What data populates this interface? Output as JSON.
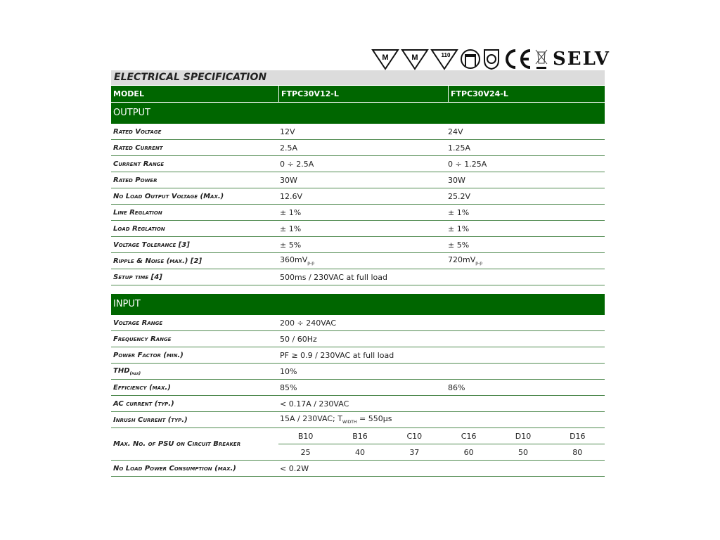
{
  "certifications": {
    "icons": [
      "m-triangle-icon",
      "m-triangle-icon",
      "110-triangle-icon",
      "class-ii-enclosure-icon",
      "safety-shield-icon",
      "ce-mark-icon",
      "weee-bin-icon"
    ],
    "ce": "CE",
    "tri_m": "M",
    "tri_110": "110",
    "selv": "SELV"
  },
  "title": "ELECTRICAL SPECIFICATION",
  "model": {
    "label": "MODEL",
    "a": "FTPC30V12-L",
    "b": "FTPC30V24-L"
  },
  "output": {
    "heading": "OUTPUT",
    "rows": [
      {
        "label": "Rated Voltage",
        "a": "12V",
        "b": "24V"
      },
      {
        "label": "Rated Current",
        "a": "2.5A",
        "b": "1.25A"
      },
      {
        "label": "Current Range",
        "a": "0 ÷ 2.5A",
        "b": "0 ÷ 1.25A"
      },
      {
        "label": "Rated Power",
        "a": "30W",
        "b": "30W"
      },
      {
        "label": "No Load Output Voltage (Max.)",
        "a": "12.6V",
        "b": "25.2V"
      },
      {
        "label": "Line Reglation",
        "a": "± 1%",
        "b": "± 1%"
      },
      {
        "label": "Load Reglation",
        "a": "± 1%",
        "b": "± 1%"
      },
      {
        "label": "Voltage Tolerance [3]",
        "a": "± 5%",
        "b": "± 5%"
      },
      {
        "label": "Ripple & Noise (max.) [2]",
        "a": "360mV",
        "a_sub": "p-p",
        "b": "720mV",
        "b_sub": "p-p"
      },
      {
        "label": "Setup time [4]",
        "a": "500ms / 230VAC at full load",
        "b": ""
      }
    ]
  },
  "input": {
    "heading": "INPUT",
    "rows": [
      {
        "label": "Voltage Range",
        "a": "200 ÷ 240VAC",
        "b": ""
      },
      {
        "label": "Frequency Range",
        "a": "50 / 60Hz",
        "b": ""
      },
      {
        "label": "Power Factor (min.)",
        "a": "PF ≥ 0.9 / 230VAC at full load",
        "b": ""
      },
      {
        "label": "THD",
        "label_sub": "(max)",
        "a": "10%",
        "b": ""
      },
      {
        "label": "Efficiency (max.)",
        "a": "85%",
        "b": "86%"
      },
      {
        "label": "AC current (typ.)",
        "a": "< 0.17A / 230VAC",
        "b": ""
      },
      {
        "label": "Inrush Current (typ.)",
        "a": "15A / 230VAC; T",
        "a_sub": "WIDTH",
        "a_tail": " = 550µs",
        "b": ""
      }
    ],
    "breaker": {
      "label": "Max. No. of PSU on Circuit Breaker",
      "types": [
        "B10",
        "B16",
        "C10",
        "C16",
        "D10",
        "D16"
      ],
      "counts": [
        "25",
        "40",
        "37",
        "60",
        "50",
        "80"
      ]
    },
    "last": {
      "label": "No Load Power Consumption (max.)",
      "a": "< 0.2W"
    }
  }
}
